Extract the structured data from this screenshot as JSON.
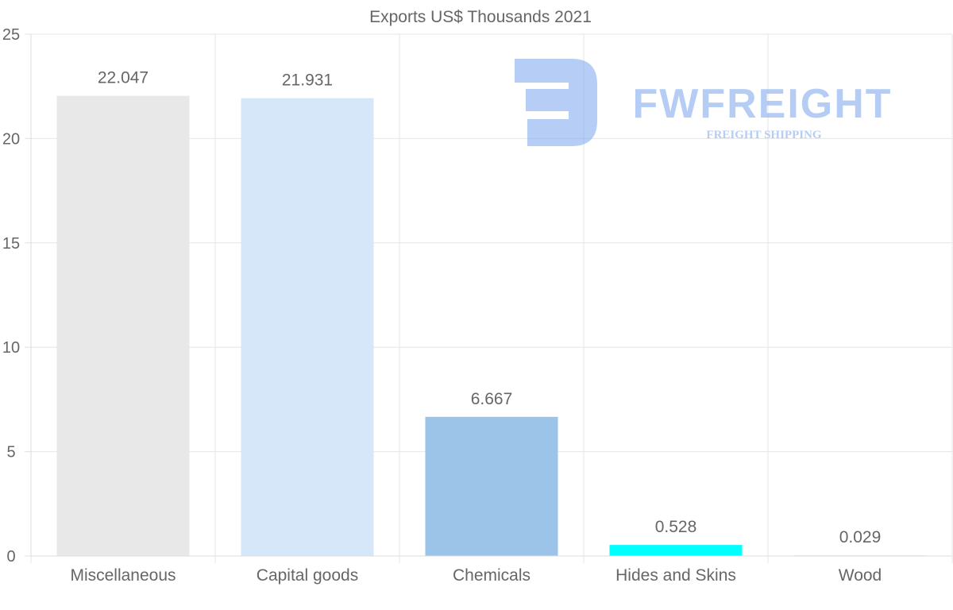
{
  "chart_data": {
    "type": "bar",
    "title": "Exports US$ Thousands 2021",
    "categories": [
      "Miscellaneous",
      "Capital goods",
      "Chemicals",
      "Hides and Skins",
      "Wood"
    ],
    "values": [
      22.047,
      21.931,
      6.667,
      0.528,
      0.029
    ],
    "value_labels": [
      "22.047",
      "21.931",
      "6.667",
      "0.528",
      "0.029"
    ],
    "colors": [
      "#e8e8e8",
      "#d6e7f9",
      "#9cc4e8",
      "#00ffff",
      "#b9d9f1"
    ],
    "ylim": [
      0,
      25
    ],
    "yticks": [
      0,
      5,
      10,
      15,
      20,
      25
    ],
    "xlabel": "",
    "ylabel": "",
    "grid": true,
    "legend": "none"
  },
  "watermark": {
    "brand": "FWFREIGHT",
    "tagline": "FREIGHT SHIPPING",
    "color": "#7aa6ee"
  }
}
